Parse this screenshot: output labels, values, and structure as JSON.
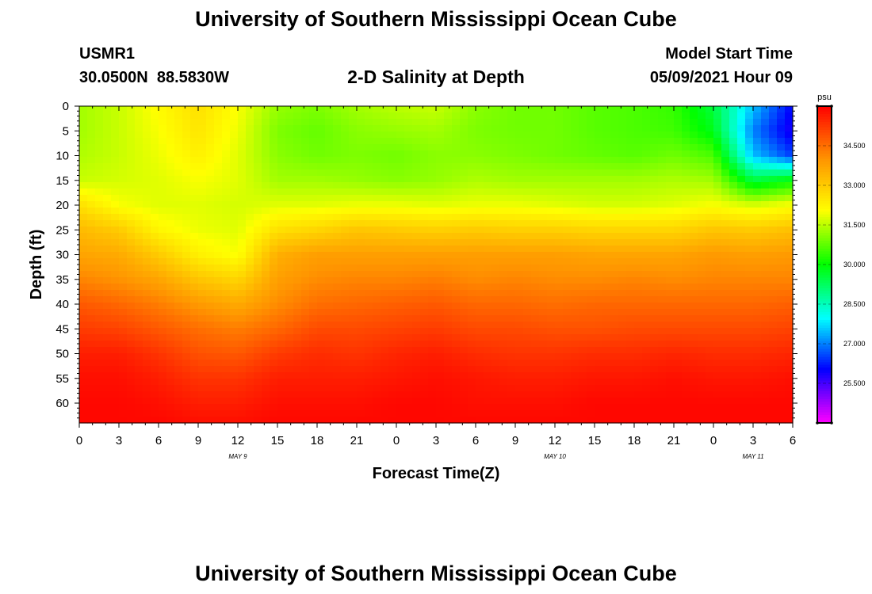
{
  "page": {
    "title_top": "University of Southern Mississippi Ocean Cube",
    "title_bottom": "University of Southern Mississippi Ocean Cube",
    "station_id": "USMR1",
    "station_coords": "30.0500N  88.5830W",
    "plot_subtitle": "2-D Salinity at Depth",
    "model_start_label": "Model Start Time",
    "model_start_value": "05/09/2021 Hour 09"
  },
  "chart_data": {
    "type": "heatmap",
    "title": "2-D Salinity at Depth",
    "xlabel": "Forecast Time(Z)",
    "ylabel": "Depth (ft)",
    "x_ticks": [
      "0",
      "3",
      "6",
      "9",
      "12",
      "15",
      "18",
      "21",
      "0",
      "3",
      "6",
      "9",
      "12",
      "15",
      "18",
      "21",
      "0",
      "3",
      "6"
    ],
    "x_hours": [
      0,
      3,
      6,
      9,
      12,
      15,
      18,
      21,
      24,
      27,
      30,
      33,
      36,
      39,
      42,
      45,
      48,
      51,
      54
    ],
    "day_labels": [
      {
        "text": "MAY  9",
        "hour": 12
      },
      {
        "text": "MAY  10",
        "hour": 36
      },
      {
        "text": "MAY  11",
        "hour": 51
      }
    ],
    "y_ticks": [
      0,
      5,
      10,
      15,
      20,
      25,
      30,
      35,
      40,
      45,
      50,
      55,
      60
    ],
    "ylim": [
      64,
      0
    ],
    "xlim": [
      0,
      54
    ],
    "colorbar": {
      "unit": "psu",
      "min": 24.0,
      "max": 36.0,
      "tick_values": [
        25.5,
        27.0,
        28.5,
        30.0,
        31.5,
        33.0,
        34.5
      ],
      "tick_labels": [
        "25.500",
        "27.000",
        "28.500",
        "30.000",
        "31.500",
        "33.000",
        "34.500"
      ]
    },
    "colors": {
      "low": "#ff00ff",
      "high": "#ff0000"
    },
    "grid_depths_ft": [
      0,
      5,
      10,
      15,
      20,
      25,
      30,
      35,
      40,
      45,
      50,
      55,
      60,
      64
    ],
    "grid_hours": [
      0,
      3,
      6,
      9,
      12,
      15,
      18,
      21,
      24,
      27,
      30,
      33,
      36,
      39,
      42,
      45,
      48,
      51,
      54
    ],
    "salinity_psu": [
      [
        31.3,
        31.6,
        32.1,
        32.6,
        32.0,
        31.2,
        31.0,
        31.3,
        31.5,
        31.6,
        31.1,
        30.9,
        30.9,
        30.7,
        30.6,
        30.4,
        29.5,
        27.5,
        26.0
      ],
      [
        31.3,
        31.6,
        32.0,
        32.5,
        31.9,
        31.0,
        30.8,
        31.1,
        31.2,
        31.3,
        31.0,
        30.9,
        30.9,
        30.7,
        30.6,
        30.5,
        29.8,
        27.0,
        25.8
      ],
      [
        31.4,
        31.6,
        31.9,
        32.3,
        31.8,
        31.1,
        30.9,
        31.0,
        30.9,
        31.1,
        31.1,
        31.0,
        30.9,
        30.8,
        30.7,
        30.9,
        30.6,
        27.5,
        26.5
      ],
      [
        31.6,
        31.7,
        31.8,
        32.0,
        31.8,
        31.3,
        31.3,
        31.2,
        31.1,
        31.2,
        31.4,
        31.3,
        31.3,
        31.3,
        31.3,
        31.4,
        31.3,
        29.5,
        30.0
      ],
      [
        32.6,
        32.0,
        31.8,
        31.8,
        31.7,
        31.8,
        31.8,
        31.9,
        31.9,
        31.8,
        31.9,
        31.9,
        31.8,
        31.7,
        31.7,
        31.8,
        32.0,
        31.7,
        32.0
      ],
      [
        33.3,
        33.0,
        32.2,
        31.9,
        31.8,
        32.6,
        32.8,
        33.1,
        33.0,
        32.9,
        33.0,
        32.9,
        32.9,
        32.8,
        32.8,
        32.8,
        33.1,
        33.0,
        33.2
      ],
      [
        33.7,
        33.6,
        33.0,
        32.3,
        32.0,
        33.5,
        33.8,
        33.8,
        33.8,
        33.8,
        33.8,
        33.8,
        33.8,
        33.7,
        33.7,
        33.7,
        33.9,
        33.8,
        33.9
      ],
      [
        34.2,
        34.0,
        33.7,
        33.1,
        32.8,
        33.8,
        34.1,
        34.2,
        34.2,
        34.3,
        34.1,
        34.2,
        34.1,
        34.1,
        34.2,
        34.1,
        34.2,
        34.2,
        34.2
      ],
      [
        34.8,
        34.6,
        34.3,
        33.9,
        33.6,
        34.1,
        34.5,
        34.6,
        34.7,
        34.8,
        34.6,
        34.6,
        34.5,
        34.6,
        34.6,
        34.6,
        34.6,
        34.6,
        34.7
      ],
      [
        35.2,
        35.1,
        34.8,
        34.5,
        34.3,
        34.6,
        35.0,
        35.0,
        35.1,
        35.2,
        35.0,
        35.0,
        34.9,
        34.9,
        35.0,
        35.0,
        35.0,
        35.0,
        35.1
      ],
      [
        35.6,
        35.6,
        35.3,
        34.9,
        34.8,
        35.2,
        35.4,
        35.3,
        35.5,
        35.6,
        35.4,
        35.3,
        35.3,
        35.4,
        35.4,
        35.5,
        35.4,
        35.4,
        35.5
      ],
      [
        35.8,
        35.8,
        35.6,
        35.3,
        35.3,
        35.6,
        35.6,
        35.6,
        35.7,
        35.8,
        35.7,
        35.6,
        35.6,
        35.7,
        35.7,
        35.8,
        35.7,
        35.7,
        35.8
      ],
      [
        35.9,
        35.9,
        35.8,
        35.6,
        35.6,
        35.8,
        35.8,
        35.8,
        35.9,
        35.9,
        35.8,
        35.8,
        35.8,
        35.9,
        35.9,
        35.9,
        35.9,
        35.9,
        35.9
      ],
      [
        35.9,
        35.9,
        35.9,
        35.8,
        35.8,
        35.9,
        35.9,
        35.9,
        35.9,
        35.9,
        35.9,
        35.9,
        35.9,
        35.9,
        35.9,
        35.9,
        35.9,
        35.9,
        35.9
      ]
    ]
  }
}
